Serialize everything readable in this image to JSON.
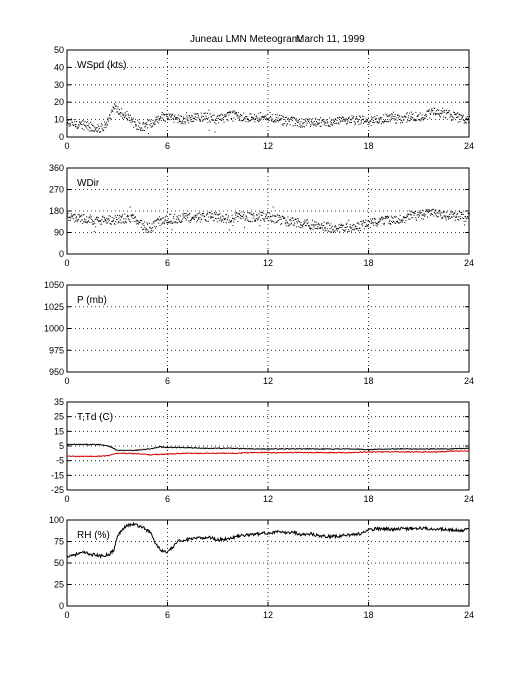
{
  "title": "Juneau LMN Meteogram:",
  "date": "March 11, 1999",
  "chart_data": [
    {
      "type": "scatter",
      "label": "WSpd (kts)",
      "xlim": [
        0,
        24
      ],
      "xticks": [
        0,
        6,
        12,
        18,
        24
      ],
      "ylim": [
        0,
        50
      ],
      "yticks": [
        0,
        10,
        20,
        30,
        40,
        50
      ],
      "grid": true,
      "series": [
        {
          "color": "#000000",
          "x": [
            0,
            0.5,
            1,
            1.5,
            2,
            2.5,
            2.8,
            3.2,
            3.6,
            4,
            4.5,
            5,
            5.5,
            6,
            6.5,
            7,
            7.5,
            8,
            8.5,
            9,
            9.5,
            10,
            10.5,
            11,
            11.5,
            12,
            12.5,
            13,
            13.5,
            14,
            14.5,
            15,
            15.5,
            16,
            16.5,
            17,
            17.5,
            18,
            18.5,
            19,
            19.5,
            20,
            20.5,
            21,
            21.5,
            22,
            22.5,
            23,
            23.5,
            24
          ],
          "y": [
            8,
            8,
            7,
            6,
            5,
            10,
            17,
            14,
            12,
            8,
            6,
            8,
            10,
            12,
            11,
            10,
            11,
            12,
            11,
            10,
            12,
            13,
            12,
            11,
            12,
            12,
            11,
            9,
            9,
            8,
            9,
            9,
            9,
            9,
            9,
            10,
            10,
            9,
            10,
            11,
            11,
            11,
            12,
            12,
            13,
            15,
            14,
            12,
            11,
            11
          ]
        }
      ]
    },
    {
      "type": "scatter",
      "label": "WDir",
      "xlim": [
        0,
        24
      ],
      "xticks": [
        0,
        6,
        12,
        18,
        24
      ],
      "ylim": [
        0,
        360
      ],
      "yticks": [
        0,
        90,
        180,
        270,
        360
      ],
      "grid": true,
      "series": [
        {
          "color": "#000000",
          "x": [
            0,
            0.5,
            1,
            1.5,
            2,
            2.5,
            3,
            3.5,
            4,
            4.5,
            5,
            5.5,
            6,
            6.5,
            7,
            7.5,
            8,
            8.5,
            9,
            9.5,
            10,
            10.5,
            11,
            11.5,
            12,
            12.5,
            13,
            13.5,
            14,
            14.5,
            15,
            15.5,
            16,
            16.5,
            17,
            17.5,
            18,
            18.5,
            19,
            19.5,
            20,
            20.5,
            21,
            21.5,
            22,
            22.5,
            23,
            23.5,
            24
          ],
          "y": [
            155,
            150,
            150,
            145,
            140,
            145,
            145,
            150,
            155,
            120,
            110,
            140,
            150,
            150,
            155,
            150,
            155,
            160,
            155,
            150,
            155,
            160,
            155,
            160,
            155,
            150,
            140,
            135,
            130,
            125,
            120,
            115,
            110,
            110,
            115,
            120,
            130,
            135,
            140,
            145,
            150,
            160,
            165,
            170,
            170,
            165,
            160,
            160,
            155
          ]
        }
      ]
    },
    {
      "type": "line",
      "label": "P (mb)",
      "xlim": [
        0,
        24
      ],
      "xticks": [
        0,
        6,
        12,
        18,
        24
      ],
      "ylim": [
        950,
        1050
      ],
      "yticks": [
        950,
        975,
        1000,
        1025,
        1050
      ],
      "grid": true,
      "series": []
    },
    {
      "type": "line",
      "label": "T,Td (C)",
      "xlim": [
        0,
        24
      ],
      "xticks": [
        0,
        6,
        12,
        18,
        24
      ],
      "ylim": [
        -25,
        35
      ],
      "yticks": [
        -25,
        -15,
        -5,
        5,
        15,
        25,
        35
      ],
      "grid": true,
      "series": [
        {
          "color": "#000000",
          "x": [
            0,
            1,
            2,
            2.5,
            3,
            4,
            5,
            5.5,
            6,
            7,
            8,
            9,
            10,
            11,
            12,
            13,
            14,
            15,
            16,
            17,
            18,
            19,
            20,
            21,
            22,
            23,
            24
          ],
          "y": [
            6,
            6,
            6,
            5,
            2,
            2,
            3,
            4.5,
            4,
            4,
            3.5,
            3.5,
            3.5,
            3,
            3,
            3,
            3,
            3,
            3,
            3,
            2.5,
            3,
            3,
            3,
            3,
            3,
            3.5
          ]
        },
        {
          "color": "#d40000",
          "x": [
            0,
            1,
            2,
            2.5,
            3,
            4,
            5,
            6,
            7,
            8,
            9,
            10,
            11,
            12,
            13,
            14,
            15,
            16,
            17,
            18,
            19,
            20,
            21,
            22,
            23,
            24
          ],
          "y": [
            -2,
            -2,
            -2,
            -1.5,
            0,
            0,
            -1,
            -0.5,
            0,
            0,
            0,
            0,
            0.5,
            0.5,
            0.5,
            0.5,
            0.5,
            0.5,
            0.5,
            1,
            1,
            1,
            1,
            1,
            1.5,
            1.5
          ]
        }
      ]
    },
    {
      "type": "line",
      "label": "RH (%)",
      "xlim": [
        0,
        24
      ],
      "xticks": [
        0,
        6,
        12,
        18,
        24
      ],
      "ylim": [
        0,
        100
      ],
      "yticks": [
        0,
        25,
        50,
        75,
        100
      ],
      "grid": true,
      "series": [
        {
          "color": "#000000",
          "x": [
            0,
            0.5,
            1,
            1.5,
            2,
            2.5,
            2.8,
            3,
            3.3,
            3.6,
            4,
            4.5,
            5,
            5.3,
            5.6,
            6,
            6.3,
            6.6,
            7,
            7.5,
            8,
            8.5,
            9,
            9.5,
            10,
            10.5,
            11,
            11.5,
            12,
            12.5,
            13,
            13.5,
            14,
            14.5,
            15,
            15.5,
            16,
            16.5,
            17,
            17.5,
            18,
            18.5,
            19,
            19.5,
            20,
            20.5,
            21,
            21.5,
            22,
            22.5,
            23,
            23.5,
            24
          ],
          "y": [
            58,
            60,
            62,
            60,
            58,
            60,
            65,
            80,
            90,
            94,
            95,
            92,
            85,
            72,
            65,
            62,
            68,
            75,
            77,
            78,
            79,
            80,
            77,
            78,
            80,
            82,
            83,
            84,
            85,
            86,
            85,
            86,
            83,
            84,
            82,
            81,
            81,
            82,
            83,
            84,
            88,
            90,
            90,
            89,
            90,
            90,
            91,
            90,
            90,
            89,
            88,
            88,
            89
          ]
        }
      ]
    }
  ]
}
